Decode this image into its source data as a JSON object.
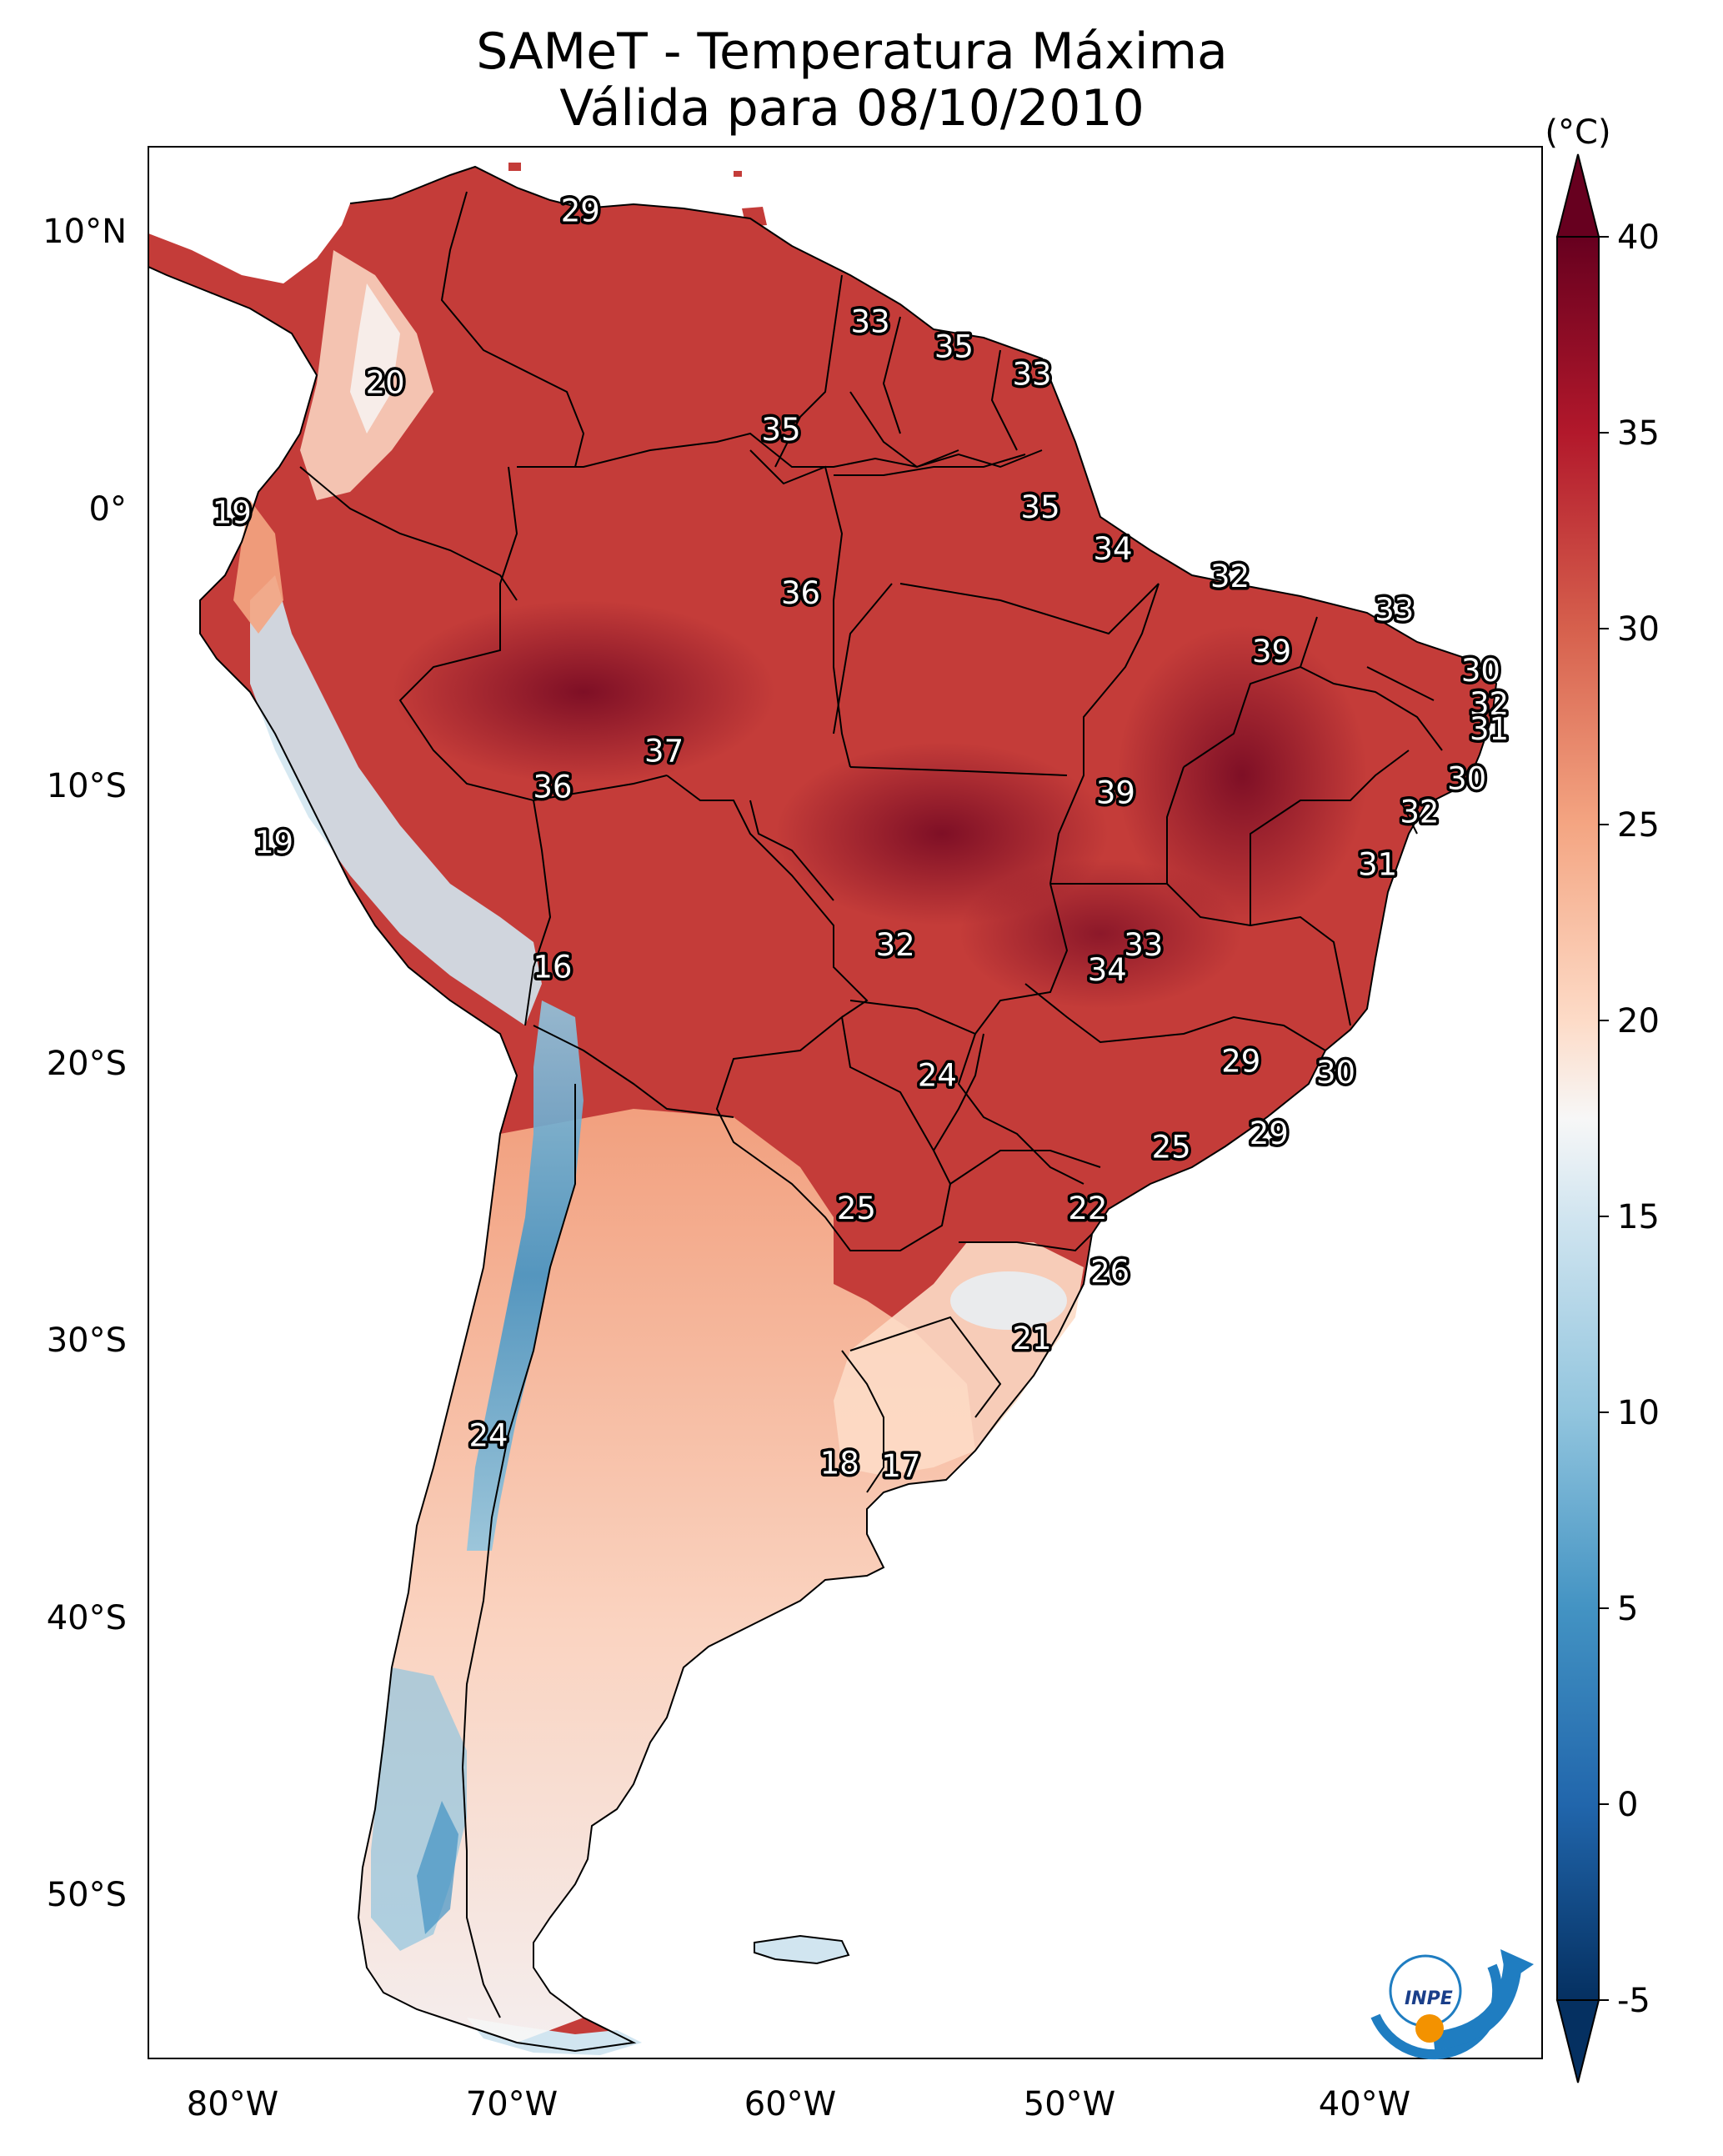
{
  "title_line1": "SAMeT - Temperatura Máxima",
  "title_line2": "Válida para 08/10/2010",
  "colorbar": {
    "unit": "(°C)",
    "min": -5,
    "max": 40,
    "ticks": [
      -5,
      0,
      5,
      10,
      15,
      20,
      25,
      30,
      35,
      40
    ],
    "colors": {
      "-5": "#053061",
      "0": "#2166ac",
      "5": "#4393c3",
      "10": "#92c5de",
      "15": "#d1e5f0",
      "17.5": "#f7f7f7",
      "20": "#fddbc7",
      "25": "#f4a582",
      "30": "#d6604d",
      "35": "#b2182b",
      "40": "#67001f"
    }
  },
  "lat_ticks": [
    "10°N",
    "0°",
    "10°S",
    "20°S",
    "30°S",
    "40°S",
    "50°S"
  ],
  "lon_ticks": [
    "80°W",
    "70°W",
    "60°W",
    "50°W",
    "40°W"
  ],
  "map_extent": {
    "lon": [
      -83,
      -33
    ],
    "lat": [
      -56,
      13
    ]
  },
  "logo": {
    "text": "INPE",
    "name": "inpe-logo"
  },
  "temperature_labels": [
    {
      "value": "29",
      "lon": -67.5,
      "lat": 10.7
    },
    {
      "value": "20",
      "lon": -74.5,
      "lat": 4.5
    },
    {
      "value": "19",
      "lon": -80.0,
      "lat": -0.2
    },
    {
      "value": "33",
      "lon": -57.1,
      "lat": 6.7
    },
    {
      "value": "35",
      "lon": -54.1,
      "lat": 5.8
    },
    {
      "value": "33",
      "lon": -51.3,
      "lat": 4.8
    },
    {
      "value": "35",
      "lon": -60.3,
      "lat": 2.8
    },
    {
      "value": "35",
      "lon": -51.0,
      "lat": 0.0
    },
    {
      "value": "34",
      "lon": -48.4,
      "lat": -1.5
    },
    {
      "value": "36",
      "lon": -59.6,
      "lat": -3.1
    },
    {
      "value": "32",
      "lon": -44.2,
      "lat": -2.5
    },
    {
      "value": "33",
      "lon": -38.3,
      "lat": -3.7
    },
    {
      "value": "39",
      "lon": -42.7,
      "lat": -5.2
    },
    {
      "value": "30",
      "lon": -35.2,
      "lat": -5.9
    },
    {
      "value": "32",
      "lon": -34.9,
      "lat": -7.1
    },
    {
      "value": "31",
      "lon": -34.9,
      "lat": -8.0
    },
    {
      "value": "30",
      "lon": -35.7,
      "lat": -9.8
    },
    {
      "value": "37",
      "lon": -64.5,
      "lat": -8.8
    },
    {
      "value": "36",
      "lon": -68.5,
      "lat": -10.1
    },
    {
      "value": "39",
      "lon": -48.3,
      "lat": -10.3
    },
    {
      "value": "32",
      "lon": -37.4,
      "lat": -11.0
    },
    {
      "value": "19",
      "lon": -78.5,
      "lat": -12.1
    },
    {
      "value": "31",
      "lon": -38.9,
      "lat": -12.9
    },
    {
      "value": "33",
      "lon": -47.3,
      "lat": -15.8
    },
    {
      "value": "32",
      "lon": -56.2,
      "lat": -15.8
    },
    {
      "value": "34",
      "lon": -48.6,
      "lat": -16.7
    },
    {
      "value": "16",
      "lon": -68.5,
      "lat": -16.6
    },
    {
      "value": "29",
      "lon": -43.8,
      "lat": -20.0
    },
    {
      "value": "30",
      "lon": -40.4,
      "lat": -20.4
    },
    {
      "value": "24",
      "lon": -54.7,
      "lat": -20.5
    },
    {
      "value": "29",
      "lon": -42.8,
      "lat": -22.6
    },
    {
      "value": "25",
      "lon": -46.3,
      "lat": -23.1
    },
    {
      "value": "25",
      "lon": -57.6,
      "lat": -25.3
    },
    {
      "value": "22",
      "lon": -49.3,
      "lat": -25.3
    },
    {
      "value": "26",
      "lon": -48.5,
      "lat": -27.6
    },
    {
      "value": "21",
      "lon": -51.3,
      "lat": -30.0
    },
    {
      "value": "24",
      "lon": -70.8,
      "lat": -33.5
    },
    {
      "value": "18",
      "lon": -58.2,
      "lat": -34.5
    },
    {
      "value": "17",
      "lon": -56.0,
      "lat": -34.6
    }
  ]
}
